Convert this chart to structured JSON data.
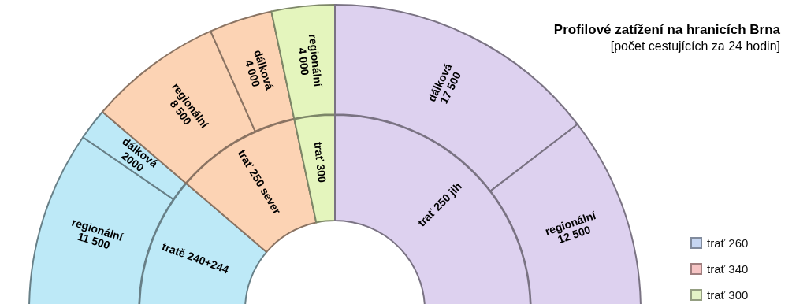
{
  "chart_data": [
    {
      "type": "donut",
      "title": "Profilové zatížení na hranicích Brna",
      "subtitle": "[počet cestujících za 24 hodin]",
      "categories": [
        "regionální",
        "dálková",
        "regionální",
        "dálková",
        "regionální",
        "dálková",
        "regionální"
      ],
      "values": [
        11500,
        2000,
        8500,
        4000,
        4000,
        17500,
        12500
      ],
      "value_labels": [
        "11 500",
        "2000",
        "8 500",
        "4 000",
        "4 000",
        "17 500",
        "12 500"
      ],
      "colors": [
        "#bde9f7",
        "#bde9f7",
        "#fcd3b4",
        "#fcd3b4",
        "#e4f5bd",
        "#ddd1ef",
        "#ddd1ef"
      ]
    },
    {
      "type": "donut",
      "categories": [
        "tratě 240+244",
        "trať 250 sever",
        "trať 300",
        "trať 250 jih"
      ],
      "values": [
        22.5,
        20.83,
        6.67,
        50
      ],
      "colors": [
        "#bde9f7",
        "#fcd3b4",
        "#e4f5bd",
        "#ddd1ef"
      ]
    },
    {
      "type": "other",
      "series": [
        {
          "name": "trať 260",
          "color": "#c6d6f2"
        },
        {
          "name": "trať 340",
          "color": "#f6c4c4"
        },
        {
          "name": "trať 300",
          "color": "#e3f3c6"
        }
      ],
      "legend": "right"
    }
  ]
}
